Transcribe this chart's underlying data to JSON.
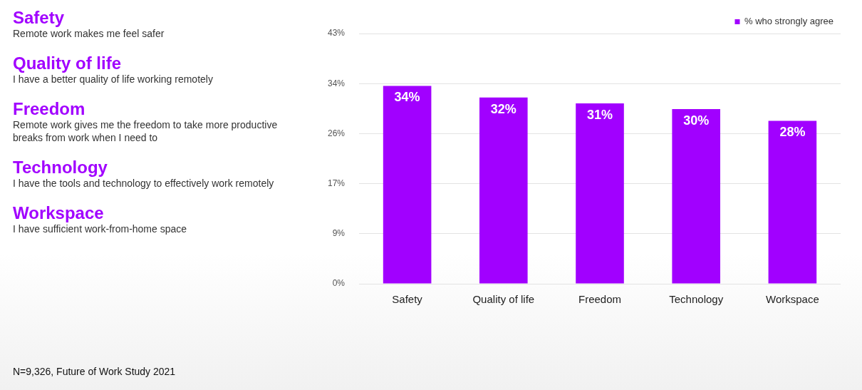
{
  "chart_data": {
    "type": "bar",
    "categories": [
      "Safety",
      "Quality of life",
      "Freedom",
      "Technology",
      "Workspace"
    ],
    "series": [
      {
        "name": "% who strongly agree",
        "color": "#a100ff",
        "values": [
          34,
          32,
          31,
          30,
          28
        ],
        "value_labels": [
          "34%",
          "32%",
          "31%",
          "30%",
          "28%"
        ]
      }
    ],
    "ylim": [
      0,
      43
    ],
    "yticks": [
      {
        "value": 0,
        "label": "0%"
      },
      {
        "value": 8.6,
        "label": "9%"
      },
      {
        "value": 17.2,
        "label": "17%"
      },
      {
        "value": 25.8,
        "label": "26%"
      },
      {
        "value": 34.4,
        "label": "34%"
      },
      {
        "value": 43,
        "label": "43%"
      }
    ],
    "grid": "y",
    "legend": "top right",
    "annotations": [
      "Safety",
      "Remote work makes me feel safer",
      "Quality of life",
      "I have a better quality of life working remotely",
      "Freedom",
      "Remote work gives me the freedom to take more productive breaks from work when I need to",
      "Technology",
      "I have the tools and technology to effectively work remotely",
      "Workspace",
      "I have sufficient work-from-home space",
      "N=9,326, Future of Work Study 2021"
    ]
  }
}
